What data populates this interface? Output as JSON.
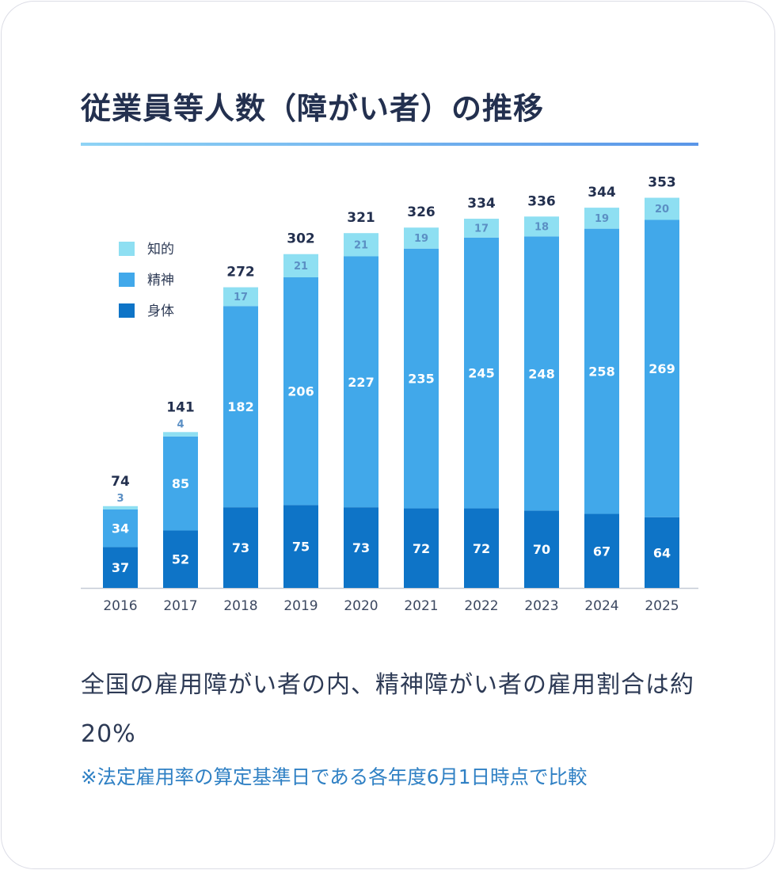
{
  "title": "従業員等人数（障がい者）の推移",
  "note": "全国の雇用障がい者の内、精神障がい者の雇用割合は約20%",
  "footnote": "※法定雇用率の算定基準日である各年度6月1日時点で比較",
  "colors": {
    "身体": "#0e74c7",
    "精神": "#41a8ea",
    "知的": "#8edff2",
    "total_label": "#23304f",
    "small_label": "#5b8fc4",
    "axis": "#c5cbd6"
  },
  "chart_data": {
    "type": "bar",
    "stacked": true,
    "categories": [
      "2016",
      "2017",
      "2018",
      "2019",
      "2020",
      "2021",
      "2022",
      "2023",
      "2024",
      "2025"
    ],
    "series": [
      {
        "name": "身体",
        "values": [
          37,
          52,
          73,
          75,
          73,
          72,
          72,
          70,
          67,
          64
        ]
      },
      {
        "name": "精神",
        "values": [
          34,
          85,
          182,
          206,
          227,
          235,
          245,
          248,
          258,
          269
        ]
      },
      {
        "name": "知的",
        "values": [
          3,
          4,
          17,
          21,
          21,
          19,
          17,
          18,
          19,
          20
        ]
      }
    ],
    "totals": [
      74,
      141,
      272,
      302,
      321,
      326,
      334,
      336,
      344,
      353
    ],
    "legend": {
      "placement": "top-left",
      "order": [
        "知的",
        "精神",
        "身体"
      ]
    },
    "ylim": [
      0,
      380
    ],
    "grid": false,
    "xlabel": "",
    "ylabel": ""
  }
}
